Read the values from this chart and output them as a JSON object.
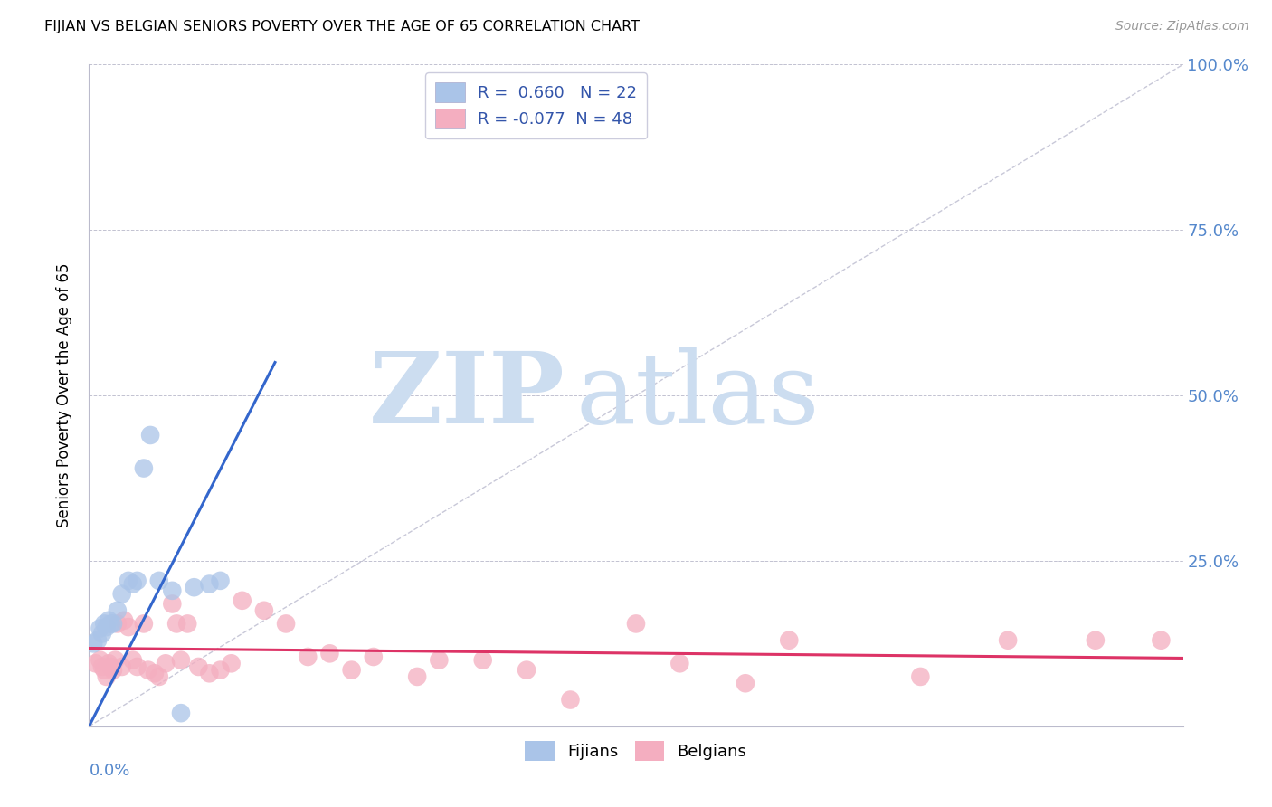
{
  "title": "FIJIAN VS BELGIAN SENIORS POVERTY OVER THE AGE OF 65 CORRELATION CHART",
  "source": "Source: ZipAtlas.com",
  "ylabel": "Seniors Poverty Over the Age of 65",
  "fijian_R": "0.660",
  "fijian_N": "22",
  "belgian_R": "-0.077",
  "belgian_N": "48",
  "xlim": [
    0.0,
    0.5
  ],
  "ylim": [
    0.0,
    1.0
  ],
  "fijian_color": "#aac4e8",
  "belgian_color": "#f4aec0",
  "fijian_line_color": "#3366CC",
  "belgian_line_color": "#DD3366",
  "diagonal_color": "#C8C8D8",
  "fijian_points_x": [
    0.002,
    0.004,
    0.005,
    0.006,
    0.007,
    0.008,
    0.009,
    0.01,
    0.011,
    0.013,
    0.015,
    0.018,
    0.02,
    0.022,
    0.025,
    0.028,
    0.032,
    0.038,
    0.042,
    0.048,
    0.055,
    0.06
  ],
  "fijian_points_y": [
    0.125,
    0.13,
    0.148,
    0.14,
    0.155,
    0.15,
    0.16,
    0.155,
    0.155,
    0.175,
    0.2,
    0.22,
    0.215,
    0.22,
    0.39,
    0.44,
    0.22,
    0.205,
    0.02,
    0.21,
    0.215,
    0.22
  ],
  "belgian_points_x": [
    0.003,
    0.005,
    0.006,
    0.007,
    0.008,
    0.009,
    0.01,
    0.011,
    0.012,
    0.013,
    0.015,
    0.016,
    0.018,
    0.02,
    0.022,
    0.025,
    0.027,
    0.03,
    0.032,
    0.035,
    0.038,
    0.04,
    0.042,
    0.045,
    0.05,
    0.055,
    0.06,
    0.065,
    0.07,
    0.08,
    0.09,
    0.1,
    0.11,
    0.12,
    0.13,
    0.15,
    0.16,
    0.18,
    0.2,
    0.22,
    0.25,
    0.27,
    0.3,
    0.32,
    0.38,
    0.42,
    0.46,
    0.49
  ],
  "belgian_points_y": [
    0.095,
    0.1,
    0.09,
    0.085,
    0.075,
    0.095,
    0.09,
    0.085,
    0.1,
    0.155,
    0.09,
    0.16,
    0.15,
    0.1,
    0.09,
    0.155,
    0.085,
    0.08,
    0.075,
    0.095,
    0.185,
    0.155,
    0.1,
    0.155,
    0.09,
    0.08,
    0.085,
    0.095,
    0.19,
    0.175,
    0.155,
    0.105,
    0.11,
    0.085,
    0.105,
    0.075,
    0.1,
    0.1,
    0.085,
    0.04,
    0.155,
    0.095,
    0.065,
    0.13,
    0.075,
    0.13,
    0.13,
    0.13
  ],
  "fijian_line_x0": 0.0,
  "fijian_line_y0": 0.0,
  "fijian_line_x1": 0.085,
  "fijian_line_y1": 0.55,
  "belgian_line_x0": 0.0,
  "belgian_line_y0": 0.118,
  "belgian_line_x1": 0.5,
  "belgian_line_y1": 0.103
}
